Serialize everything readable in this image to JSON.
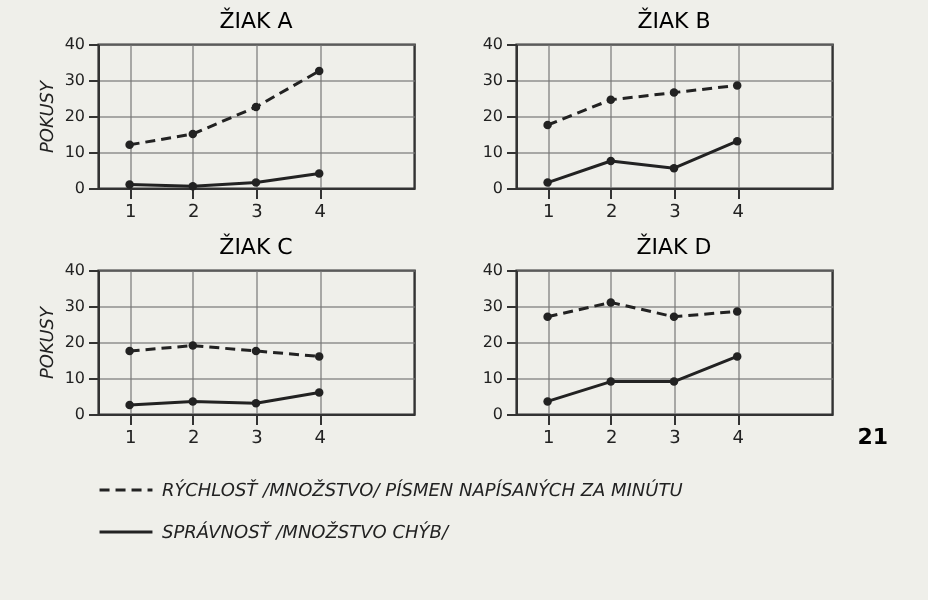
{
  "chart_data": [
    {
      "type": "line",
      "title": "ŽIAK A",
      "ylabel": "POKUSY",
      "x": [
        1,
        2,
        3,
        4
      ],
      "xlim": [
        0.5,
        5.5
      ],
      "xticks": [
        1,
        2,
        3,
        4
      ],
      "ylim": [
        0,
        40
      ],
      "yticks": [
        0,
        10,
        20,
        30,
        40
      ],
      "grid": true,
      "marker": "circle",
      "series": [
        {
          "color": "#222222",
          "line_style": "dashed",
          "values": [
            12,
            15,
            22.5,
            32.5
          ]
        },
        {
          "color": "#222222",
          "line_style": "solid",
          "values": [
            1,
            0.5,
            1.5,
            4
          ]
        }
      ]
    },
    {
      "type": "line",
      "title": "ŽIAK B",
      "x": [
        1,
        2,
        3,
        4
      ],
      "xlim": [
        0.5,
        5.5
      ],
      "xticks": [
        1,
        2,
        3,
        4
      ],
      "ylim": [
        0,
        40
      ],
      "yticks": [
        0,
        10,
        20,
        30,
        40
      ],
      "grid": true,
      "marker": "circle",
      "series": [
        {
          "color": "#222222",
          "line_style": "dashed",
          "values": [
            17.5,
            24.5,
            26.5,
            28.5
          ]
        },
        {
          "color": "#222222",
          "line_style": "solid",
          "values": [
            1.5,
            7.5,
            5.5,
            13
          ]
        }
      ]
    },
    {
      "type": "line",
      "title": "ŽIAK C",
      "ylabel": "POKUSY",
      "x": [
        1,
        2,
        3,
        4
      ],
      "xlim": [
        0.5,
        5.5
      ],
      "xticks": [
        1,
        2,
        3,
        4
      ],
      "ylim": [
        0,
        40
      ],
      "yticks": [
        0,
        10,
        20,
        30,
        40
      ],
      "grid": true,
      "marker": "circle",
      "legend": "bottom",
      "series": [
        {
          "name": "RÝCHLOSŤ /MNOŽSTVO/ PÍSMEN NAPÍSANÝCH ZA MINÚTU",
          "color": "#222222",
          "line_style": "dashed",
          "values": [
            17.5,
            19,
            17.5,
            16
          ]
        },
        {
          "name": "SPRÁVNOSŤ /MNOŽSTVO CHÝB/",
          "color": "#222222",
          "line_style": "solid",
          "values": [
            2.5,
            3.5,
            3,
            6
          ]
        }
      ]
    },
    {
      "type": "line",
      "title": "ŽIAK D",
      "x": [
        1,
        2,
        3,
        4
      ],
      "xlim": [
        0.5,
        5.5
      ],
      "xticks": [
        1,
        2,
        3,
        4
      ],
      "ylim": [
        0,
        40
      ],
      "yticks": [
        0,
        10,
        20,
        30,
        40
      ],
      "grid": true,
      "marker": "circle",
      "annotations": [
        "21"
      ],
      "series": [
        {
          "color": "#222222",
          "line_style": "dashed",
          "values": [
            27,
            31,
            27,
            28.5
          ]
        },
        {
          "color": "#222222",
          "line_style": "solid",
          "values": [
            3.5,
            9,
            9,
            16
          ]
        }
      ]
    }
  ]
}
